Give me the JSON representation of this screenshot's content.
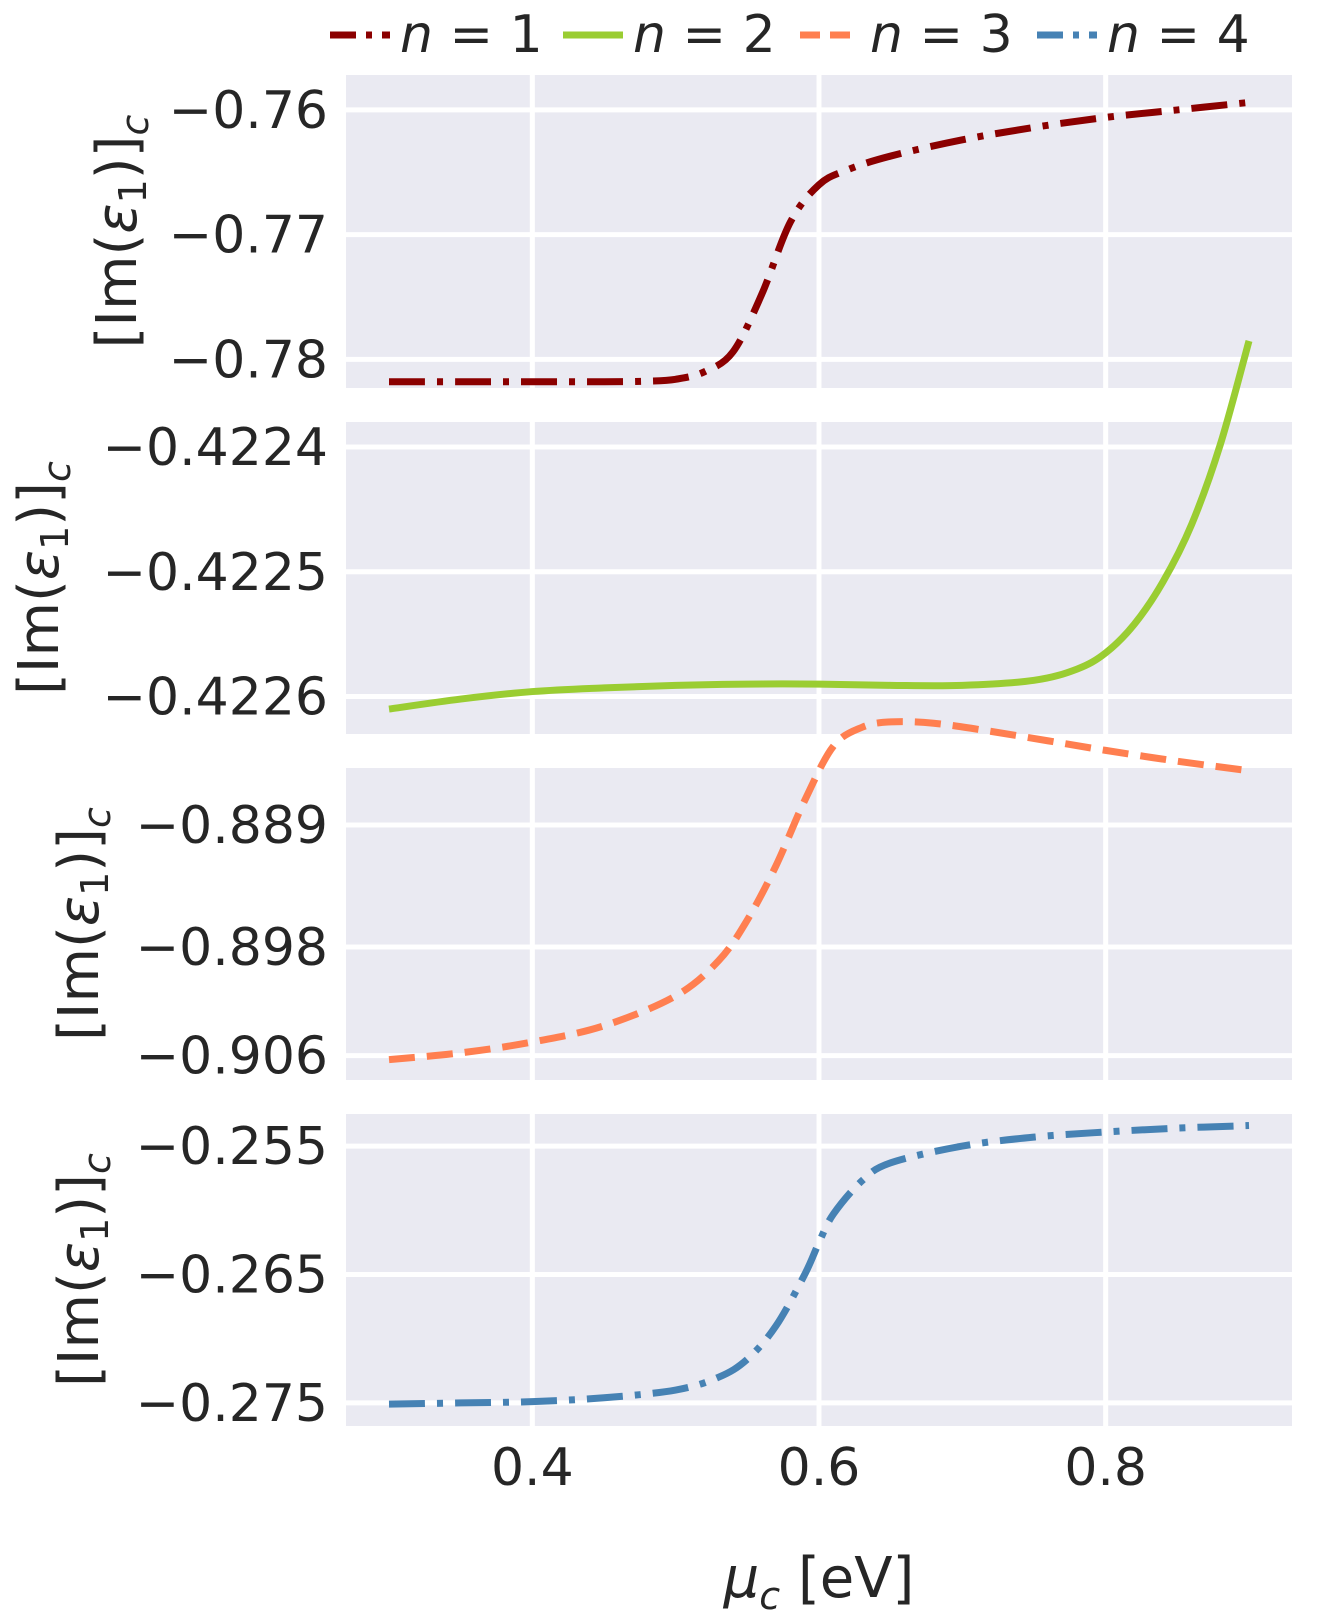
{
  "chart_data": {
    "type": "line",
    "shared_x": {
      "label_symbol": "μ",
      "label_sub": "c",
      "label_unit": "[eV]",
      "xlim": [
        0.27,
        0.93
      ],
      "ticks": [
        0.4,
        0.6,
        0.8
      ],
      "tick_labels": [
        "0.4",
        "0.6",
        "0.8"
      ]
    },
    "legend": {
      "placement": "top",
      "entries": [
        {
          "var": "n",
          "eq": " = 1",
          "color": "#8b0000",
          "dash": "dashdot"
        },
        {
          "var": "n",
          "eq": " = 2",
          "color": "#9acd32",
          "dash": "solid"
        },
        {
          "var": "n",
          "eq": " = 3",
          "color": "#ff7f50",
          "dash": "dashed"
        },
        {
          "var": "n",
          "eq": " = 4",
          "color": "#4682b4",
          "dash": "dashdot"
        }
      ]
    },
    "grid": true,
    "background": "#eaeaf2",
    "panels": [
      {
        "series_name": "n = 1",
        "ylabel": "[Im(ε1)]c",
        "ylim": [
          -0.7823,
          -0.7572
        ],
        "yticks": [
          -0.78,
          -0.77,
          -0.76
        ],
        "ytick_labels": [
          "−0.78",
          "−0.77",
          "−0.76"
        ],
        "x": [
          0.3,
          0.35,
          0.4,
          0.45,
          0.48,
          0.5,
          0.52,
          0.54,
          0.56,
          0.58,
          0.6,
          0.62,
          0.65,
          0.7,
          0.75,
          0.8,
          0.85,
          0.9
        ],
        "y": [
          -0.7818,
          -0.7818,
          -0.7818,
          -0.7818,
          -0.78175,
          -0.7816,
          -0.781,
          -0.7794,
          -0.7748,
          -0.769,
          -0.766,
          -0.7648,
          -0.7637,
          -0.7624,
          -0.7614,
          -0.7606,
          -0.76,
          -0.7594
        ]
      },
      {
        "series_name": "n = 2",
        "ylabel": "[Im(ε1)]c",
        "ylim": [
          -0.42263,
          -0.42238
        ],
        "yticks": [
          -0.4226,
          -0.4225,
          -0.4224
        ],
        "ytick_labels": [
          "−0.4226",
          "−0.4225",
          "−0.4224"
        ],
        "x": [
          0.3,
          0.35,
          0.4,
          0.45,
          0.5,
          0.55,
          0.6,
          0.65,
          0.7,
          0.75,
          0.78,
          0.8,
          0.82,
          0.84,
          0.86,
          0.88,
          0.9
        ],
        "y": [
          -0.42261,
          -0.422602,
          -0.422596,
          -0.422593,
          -0.422591,
          -0.42259,
          -0.42259,
          -0.422591,
          -0.422591,
          -0.422587,
          -0.422578,
          -0.422565,
          -0.422542,
          -0.422508,
          -0.422462,
          -0.422398,
          -0.422315
        ]
      },
      {
        "series_name": "n = 3",
        "ylabel": "[Im(ε1)]c",
        "ylim": [
          -0.9078,
          -0.8848
        ],
        "yticks": [
          -0.906,
          -0.898,
          -0.889
        ],
        "ytick_labels": [
          "−0.906",
          "−0.898",
          "−0.889"
        ],
        "x": [
          0.3,
          0.35,
          0.4,
          0.45,
          0.5,
          0.53,
          0.55,
          0.57,
          0.59,
          0.61,
          0.63,
          0.65,
          0.68,
          0.72,
          0.76,
          0.8,
          0.85,
          0.9
        ],
        "y": [
          -0.9063,
          -0.9058,
          -0.905,
          -0.9038,
          -0.9016,
          -0.899,
          -0.896,
          -0.892,
          -0.8872,
          -0.8832,
          -0.8818,
          -0.8814,
          -0.8815,
          -0.8821,
          -0.8828,
          -0.8835,
          -0.8843,
          -0.885
        ]
      },
      {
        "series_name": "n = 4",
        "ylabel": "[Im(ε1)]c",
        "ylim": [
          -0.2768,
          -0.2525
        ],
        "yticks": [
          -0.275,
          -0.265,
          -0.255
        ],
        "ytick_labels": [
          "−0.275",
          "−0.265",
          "−0.255"
        ],
        "x": [
          0.3,
          0.35,
          0.4,
          0.45,
          0.5,
          0.53,
          0.55,
          0.57,
          0.59,
          0.6,
          0.61,
          0.63,
          0.65,
          0.7,
          0.75,
          0.8,
          0.85,
          0.9
        ],
        "y": [
          -0.2751,
          -0.275,
          -0.2749,
          -0.2746,
          -0.274,
          -0.273,
          -0.2716,
          -0.269,
          -0.265,
          -0.2625,
          -0.2603,
          -0.2577,
          -0.2563,
          -0.255,
          -0.2543,
          -0.2539,
          -0.2536,
          -0.2534
        ]
      }
    ]
  }
}
